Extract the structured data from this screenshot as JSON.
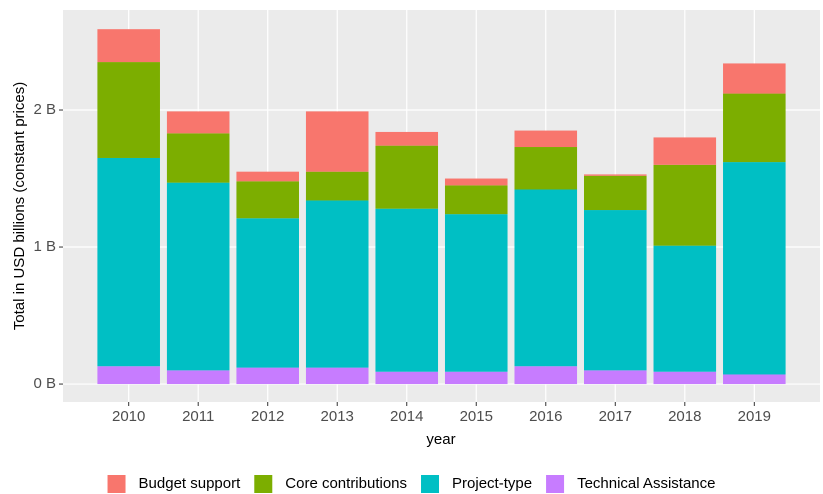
{
  "chart_data": {
    "type": "stacked_bar",
    "x_label": "year",
    "y_label": "Total in USD billions (constant prices)",
    "categories": [
      "2010",
      "2011",
      "2012",
      "2013",
      "2014",
      "2015",
      "2016",
      "2017",
      "2018",
      "2019"
    ],
    "series": [
      {
        "name": "Budget support",
        "color": "#F8766D",
        "values": [
          0.24,
          0.16,
          0.07,
          0.44,
          0.1,
          0.05,
          0.12,
          0.01,
          0.2,
          0.22
        ]
      },
      {
        "name": "Core contributions",
        "color": "#7CAE00",
        "values": [
          0.7,
          0.36,
          0.27,
          0.21,
          0.46,
          0.21,
          0.31,
          0.25,
          0.59,
          0.5
        ]
      },
      {
        "name": "Project-type",
        "color": "#00BFC4",
        "values": [
          1.52,
          1.37,
          1.09,
          1.22,
          1.19,
          1.15,
          1.29,
          1.17,
          0.92,
          1.55
        ]
      },
      {
        "name": "Technical Assistance",
        "color": "#C77CFF",
        "values": [
          0.13,
          0.1,
          0.12,
          0.12,
          0.09,
          0.09,
          0.13,
          0.1,
          0.09,
          0.07
        ]
      }
    ],
    "ylim": [
      -0.131,
      2.73
    ],
    "yticks": [
      {
        "value": 0,
        "label": "0 B"
      },
      {
        "value": 1,
        "label": "1 B"
      },
      {
        "value": 2,
        "label": "2 B"
      }
    ],
    "grid": true,
    "legend_position": "bottom"
  }
}
